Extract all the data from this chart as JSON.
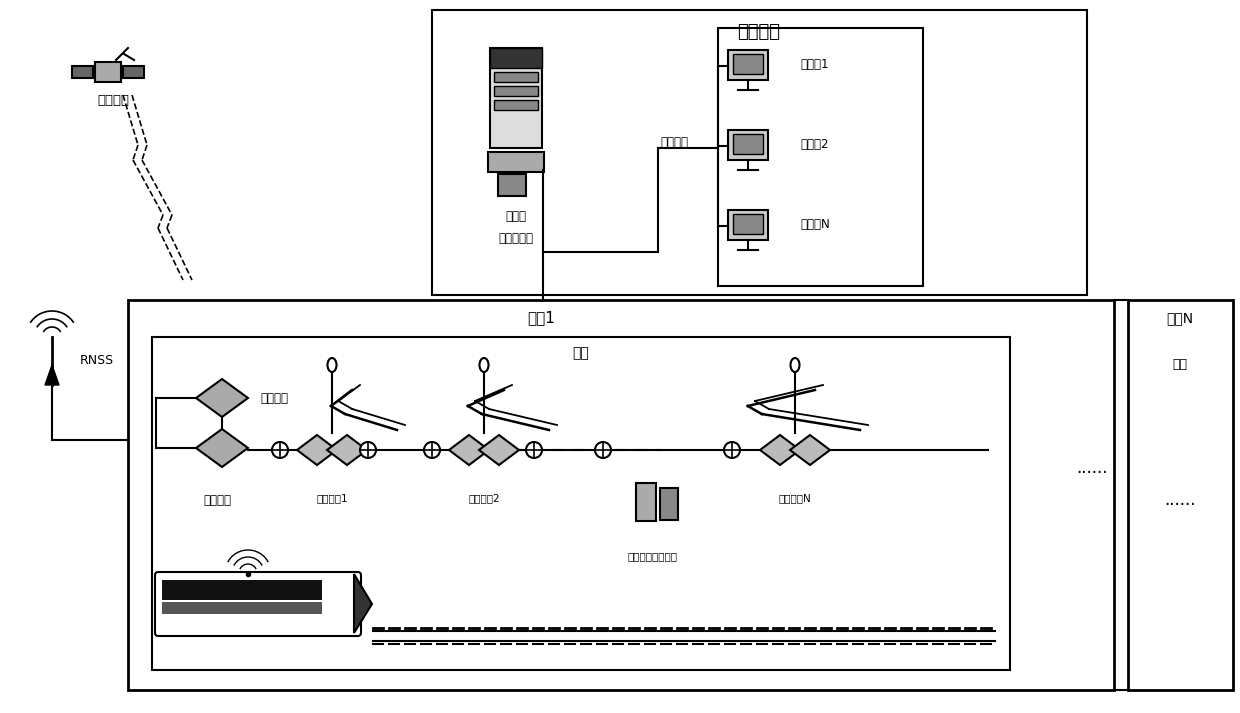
{
  "bg_color": "#ffffff",
  "labels": {
    "network_mgmt": "网管系统",
    "server": "服务器",
    "switch": "中心交换机",
    "intranet": "铁路内网",
    "client1": "客户端1",
    "client2": "客户端2",
    "clientN": "客户端N",
    "tunnel1_label": "隧道1",
    "tunnelN_label": "隧道N",
    "tunnel_inner": "隧道",
    "satellite": "导航卫星",
    "rnss": "RNSS",
    "mgmt_unit": "管理单元",
    "base_unit": "基准单元",
    "relay1": "中继单元1",
    "relay2": "中继单元2",
    "relayN": "中继单元N",
    "handheld": "手持定位导航终端",
    "dots1": "......",
    "dots2": "......"
  }
}
